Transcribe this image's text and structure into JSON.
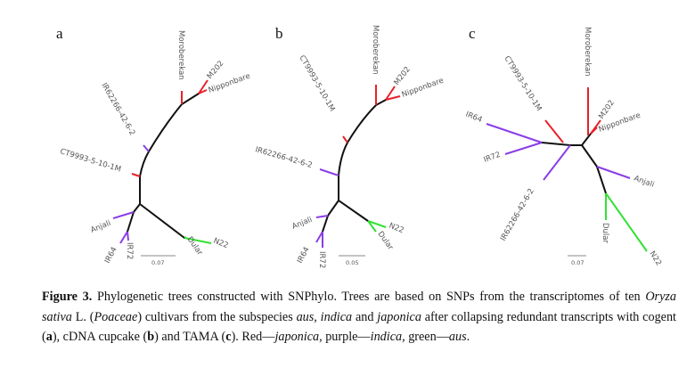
{
  "colors": {
    "japonica": "#e8202a",
    "indica": "#8a3ee6",
    "aus": "#33e033",
    "backbone": "#111111"
  },
  "panels": [
    {
      "label": "a",
      "scale": "0.07",
      "taxa": {
        "moroberekan": "Moroberekan",
        "m202": "M202",
        "nipponbare": "Nipponbare",
        "ir62266": "IR62266-42-6-2",
        "ct9993": "CT9993-5-10-1M",
        "anjali": "Anjali",
        "ir64": "IR64",
        "ir72": "IR72",
        "dular": "Dular",
        "n22": "N22"
      }
    },
    {
      "label": "b",
      "scale": "0.05",
      "taxa": {
        "moroberekan": "Moroberekan",
        "m202": "M202",
        "nipponbare": "Nipponbare",
        "ir62266": "IR62266-42-6-2",
        "ct9993": "CT9993-5-10-1M",
        "anjali": "Anjali",
        "ir64": "IR64",
        "ir72": "IR72",
        "dular": "Dular",
        "n22": "N22"
      }
    },
    {
      "label": "c",
      "scale": "0.07",
      "taxa": {
        "moroberekan": "Moroberekan",
        "m202": "M202",
        "nipponbare": "Nipponbare",
        "ir62266": "IR62266-42-6-2",
        "ct9993": "CT9993-5-10-1M",
        "anjali": "Anjali",
        "ir64": "IR64",
        "ir72": "IR72",
        "dular": "Dular",
        "n22": "N22"
      }
    }
  ],
  "caption": {
    "label": "Figure 3.",
    "t1": " Phylogenetic trees constructed with SNPhylo. Trees are based on SNPs from the transcriptomes of ten ",
    "species": "Oryza sativa",
    "t2": " L. (",
    "family": "Poaceae",
    "t3": ") cultivars from the subspecies ",
    "aus": "aus",
    "t4": ", ",
    "indica": "indica",
    "t5": " and ",
    "japonica": "japonica",
    "t6": " after collapsing redundant transcripts with cogent (",
    "a": "a",
    "t7": "), cDNA cupcake (",
    "b": "b",
    "t8": ") and TAMA (",
    "c": "c",
    "t9": "). Red—",
    "japonica2": "japonica",
    "t10": ", purple—",
    "indica2": "indica",
    "t11": ", green—",
    "aus2": "aus",
    "t12": "."
  }
}
